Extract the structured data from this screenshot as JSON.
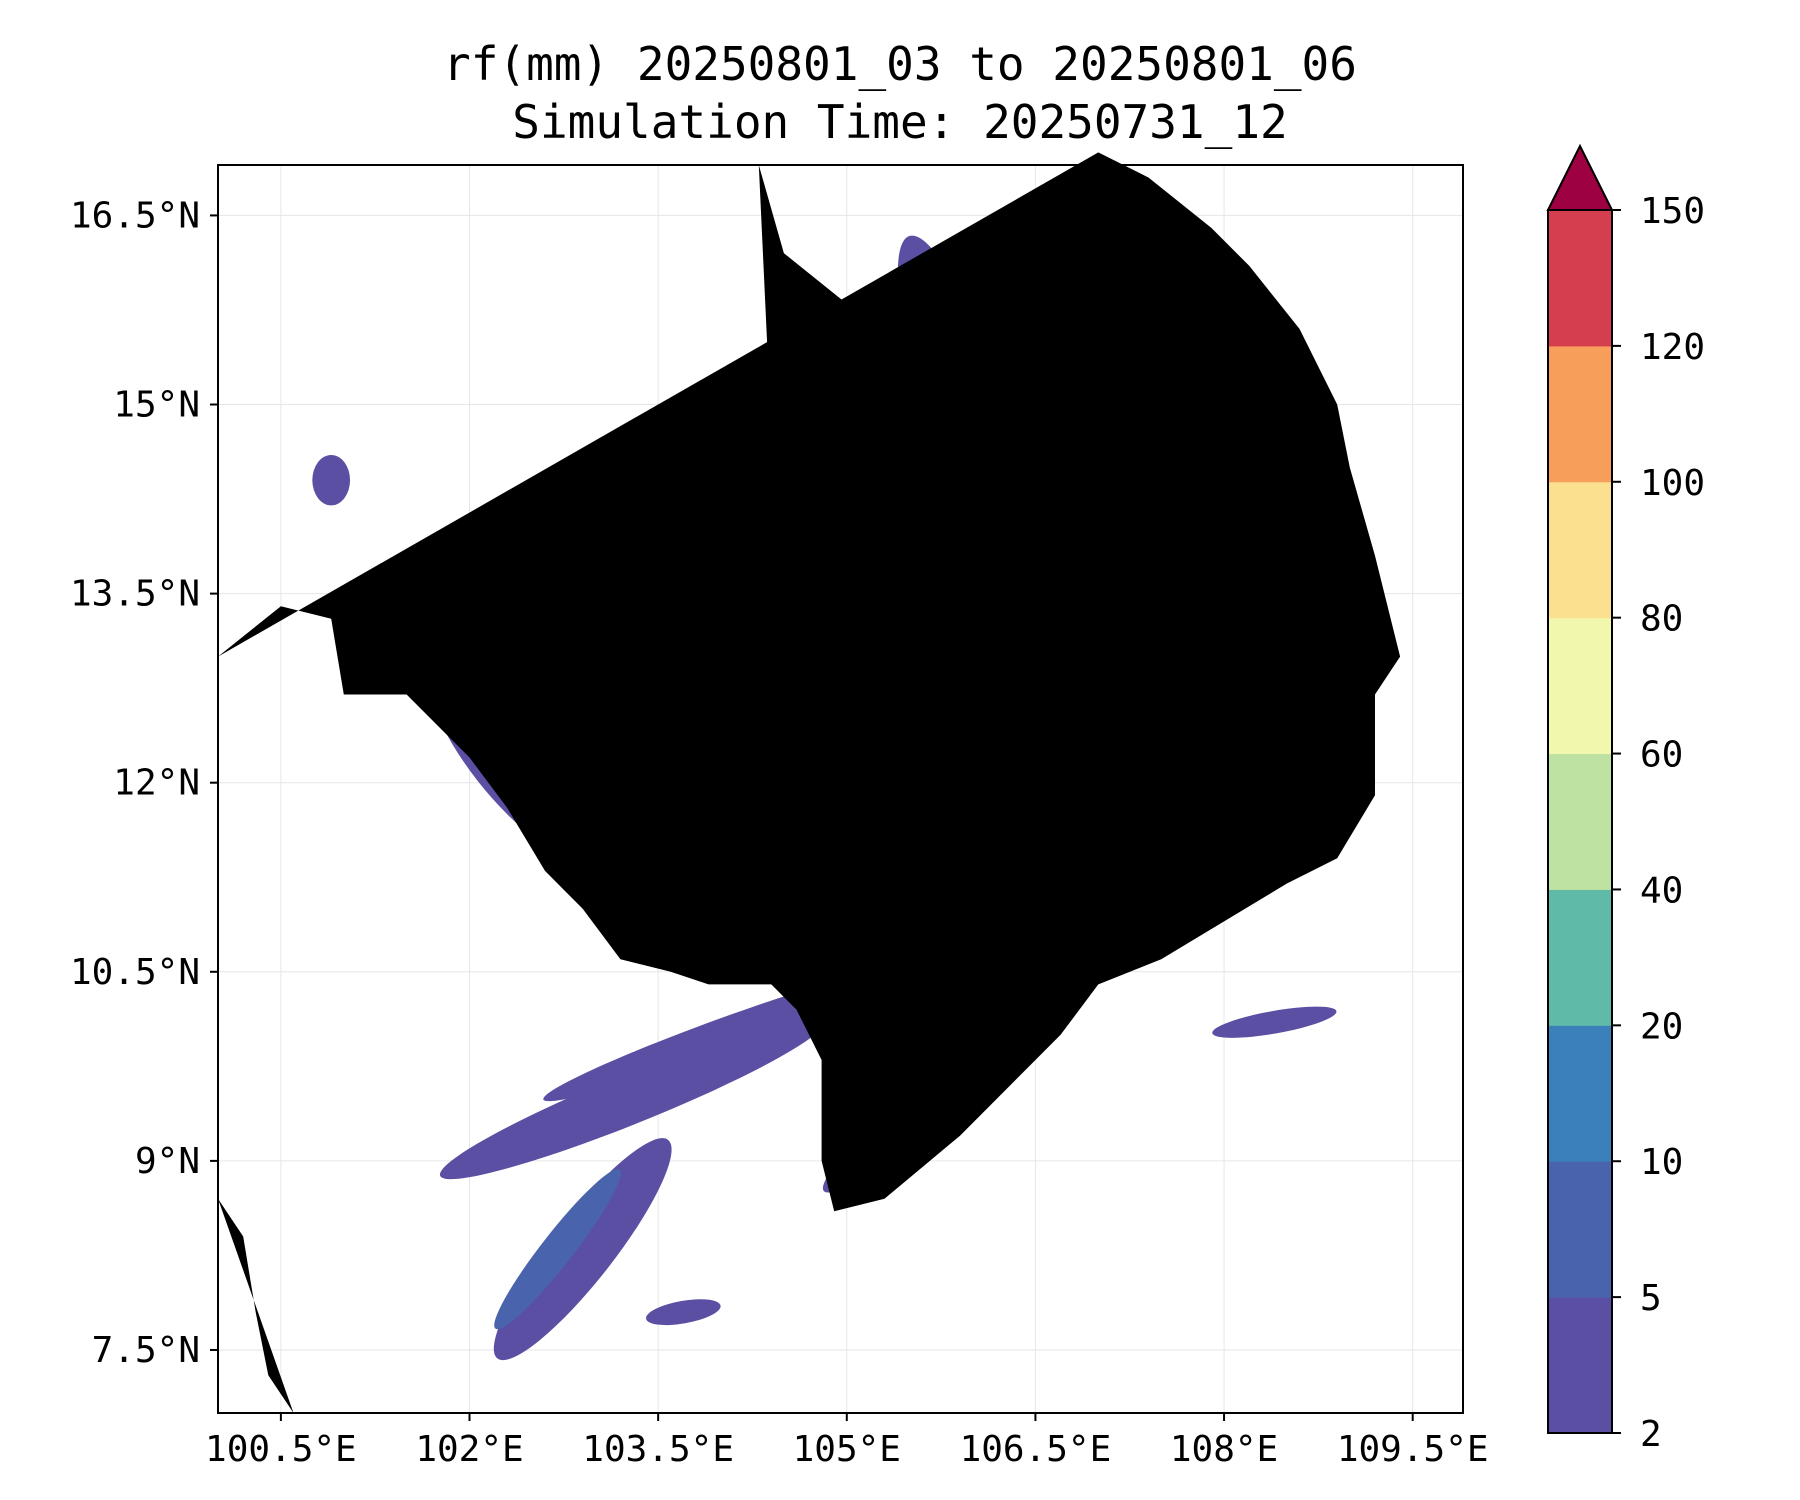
{
  "title_line1": "rf(mm) 20250801_03 to 20250801_06",
  "title_line2": "Simulation Time: 20250731_12",
  "map": {
    "lon_range": [
      100.0,
      109.9
    ],
    "lat_range": [
      7.0,
      16.9
    ],
    "x_ticks": [
      {
        "value": 100.5,
        "label": "100.5°E"
      },
      {
        "value": 102.0,
        "label": "102°E"
      },
      {
        "value": 103.5,
        "label": "103.5°E"
      },
      {
        "value": 105.0,
        "label": "105°E"
      },
      {
        "value": 106.5,
        "label": "106.5°E"
      },
      {
        "value": 108.0,
        "label": "108°E"
      },
      {
        "value": 109.5,
        "label": "109.5°E"
      }
    ],
    "y_ticks": [
      {
        "value": 16.5,
        "label": "16.5°N"
      },
      {
        "value": 15.0,
        "label": "15°N"
      },
      {
        "value": 13.5,
        "label": "13.5°N"
      },
      {
        "value": 12.0,
        "label": "12°N"
      },
      {
        "value": 10.5,
        "label": "10.5°N"
      },
      {
        "value": 9.0,
        "label": "9°N"
      },
      {
        "value": 7.5,
        "label": "7.5°N"
      }
    ],
    "grid": true,
    "rain_color_low": "#5a4fa3",
    "rain_color_mid": "#4a63ad",
    "rain_color_high": "#3b86bc",
    "rain_areas": [
      {
        "level": "2-5",
        "lon": 102.3,
        "lat": 12.2,
        "w": 0.6,
        "h": 1.9,
        "rot": -38
      },
      {
        "level": "2-5",
        "lon": 103.0,
        "lat": 11.6,
        "w": 0.5,
        "h": 1.6,
        "rot": -35
      },
      {
        "level": "2-5",
        "lon": 102.9,
        "lat": 8.3,
        "w": 0.5,
        "h": 2.2,
        "rot": 38
      },
      {
        "level": "2-5",
        "lon": 103.3,
        "lat": 9.5,
        "w": 0.4,
        "h": 3.3,
        "rot": 68
      },
      {
        "level": "2-5",
        "lon": 104.0,
        "lat": 10.0,
        "w": 0.25,
        "h": 3.0,
        "rot": 70
      },
      {
        "level": "2-5",
        "lon": 105.7,
        "lat": 9.5,
        "w": 0.35,
        "h": 2.3,
        "rot": 50
      },
      {
        "level": "2-5",
        "lon": 106.2,
        "lat": 11.7,
        "w": 0.9,
        "h": 1.5,
        "rot": -30
      },
      {
        "level": "2-5",
        "lon": 106.9,
        "lat": 11.5,
        "w": 0.7,
        "h": 2.0,
        "rot": -30
      },
      {
        "level": "2-5",
        "lon": 105.9,
        "lat": 15.1,
        "w": 0.6,
        "h": 2.6,
        "rot": -18
      },
      {
        "level": "2-5",
        "lon": 106.9,
        "lat": 15.3,
        "w": 0.5,
        "h": 2.5,
        "rot": -30
      },
      {
        "level": "2-5",
        "lon": 106.5,
        "lat": 14.0,
        "w": 1.0,
        "h": 0.9,
        "rot": 0
      },
      {
        "level": "2-5",
        "lon": 107.4,
        "lat": 13.9,
        "w": 0.45,
        "h": 1.3,
        "rot": -20
      },
      {
        "level": "2-5",
        "lon": 100.9,
        "lat": 14.4,
        "w": 0.3,
        "h": 0.4,
        "rot": 0
      },
      {
        "level": "2-5",
        "lon": 108.4,
        "lat": 10.1,
        "w": 0.18,
        "h": 1.0,
        "rot": 80
      },
      {
        "level": "2-5",
        "lon": 105.8,
        "lat": 11.1,
        "w": 0.25,
        "h": 0.9,
        "rot": 70
      },
      {
        "level": "2-5",
        "lon": 103.7,
        "lat": 7.8,
        "w": 0.18,
        "h": 0.6,
        "rot": 80
      },
      {
        "level": "2-5",
        "lon": 108.6,
        "lat": 11.9,
        "w": 0.2,
        "h": 0.35,
        "rot": 0
      },
      {
        "level": "2-5",
        "lon": 104.8,
        "lat": 13.1,
        "w": 0.2,
        "h": 0.5,
        "rot": 0
      },
      {
        "level": "5-10",
        "lon": 102.2,
        "lat": 12.3,
        "w": 0.35,
        "h": 1.5,
        "rot": -38
      },
      {
        "level": "5-10",
        "lon": 102.7,
        "lat": 8.3,
        "w": 0.25,
        "h": 1.6,
        "rot": 38
      },
      {
        "level": "5-10",
        "lon": 106.5,
        "lat": 11.6,
        "w": 0.6,
        "h": 1.1,
        "rot": -30
      },
      {
        "level": "5-10",
        "lon": 106.4,
        "lat": 14.1,
        "w": 0.55,
        "h": 0.5,
        "rot": 0
      },
      {
        "level": "5-10",
        "lon": 105.8,
        "lat": 15.4,
        "w": 0.3,
        "h": 1.4,
        "rot": -18
      },
      {
        "level": "10-20",
        "lon": 106.6,
        "lat": 11.5,
        "w": 0.35,
        "h": 0.45,
        "rot": -30
      },
      {
        "level": "10-20",
        "lon": 106.45,
        "lat": 14.05,
        "w": 0.3,
        "h": 0.25,
        "rot": 0
      }
    ],
    "coast_color": "#000000"
  },
  "colorbar": {
    "levels": [
      "2",
      "5",
      "10",
      "20",
      "40",
      "60",
      "80",
      "100",
      "120",
      "150"
    ],
    "colors": [
      "#5a4fa3",
      "#4a63ad",
      "#3b80ba",
      "#5fbaa8",
      "#bde2a2",
      "#f1f7ac",
      "#fbe08f",
      "#f89e5b",
      "#d53e4f"
    ],
    "extend_color": "#9e0142"
  }
}
